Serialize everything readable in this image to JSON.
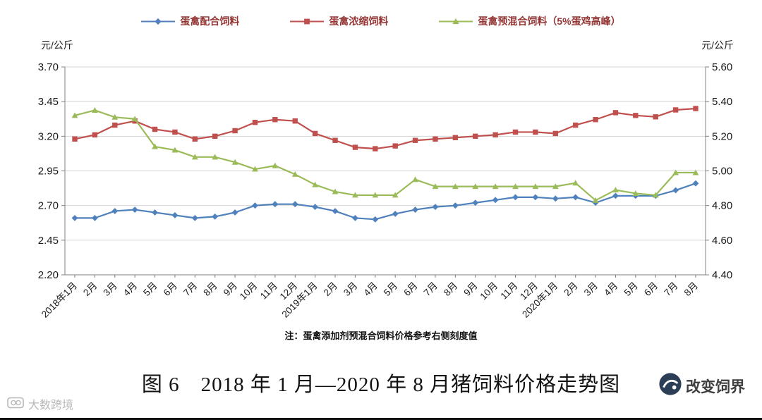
{
  "legend": [
    {
      "label": "蛋禽配合饲料",
      "color": "#4F81BD",
      "marker": "diamond"
    },
    {
      "label": "蛋禽浓缩饲料",
      "color": "#C0504D",
      "marker": "square"
    },
    {
      "label": "蛋禽预混合饲料（5%蛋鸡高峰）",
      "color": "#9BBB59",
      "marker": "triangle"
    }
  ],
  "note": "注：蛋禽添加剂预混合饲料价格参考右侧刻度值",
  "caption": "图 6　2018 年 1 月—2020 年 8 月猪饲料价格走势图",
  "watermarks": {
    "left": "大数跨境",
    "right": "改变饲界"
  },
  "colors": {
    "legend_text": "#943634",
    "axis": "#808080",
    "grid": "#d4d4d4",
    "text": "#1a1a1a",
    "blue": "#4F81BD",
    "red": "#C0504D",
    "green": "#9BBB59"
  },
  "chart_data": {
    "type": "line",
    "title": "2018年1月—2020年8月猪饲料价格走势图",
    "categories": [
      "2018年1月",
      "2月",
      "3月",
      "4月",
      "5月",
      "6月",
      "7月",
      "8月",
      "9月",
      "10月",
      "11月",
      "12月",
      "2019年1月",
      "2月",
      "3月",
      "4月",
      "5月",
      "6月",
      "7月",
      "8月",
      "9月",
      "10月",
      "11月",
      "12月",
      "2020年1月",
      "2月",
      "3月",
      "4月",
      "5月",
      "6月",
      "7月",
      "8月"
    ],
    "series": [
      {
        "name": "蛋禽配合饲料",
        "axis": "left",
        "marker": "diamond",
        "color": "#4F81BD",
        "values": [
          2.61,
          2.61,
          2.66,
          2.67,
          2.65,
          2.63,
          2.61,
          2.62,
          2.65,
          2.7,
          2.71,
          2.71,
          2.69,
          2.66,
          2.61,
          2.6,
          2.64,
          2.67,
          2.69,
          2.7,
          2.72,
          2.74,
          2.76,
          2.76,
          2.75,
          2.76,
          2.72,
          2.77,
          2.77,
          2.77,
          2.81,
          2.86
        ]
      },
      {
        "name": "蛋禽浓缩饲料",
        "axis": "left",
        "marker": "square",
        "color": "#C0504D",
        "values": [
          3.18,
          3.21,
          3.28,
          3.31,
          3.25,
          3.23,
          3.18,
          3.2,
          3.24,
          3.3,
          3.32,
          3.31,
          3.22,
          3.17,
          3.12,
          3.11,
          3.13,
          3.17,
          3.18,
          3.19,
          3.2,
          3.21,
          3.23,
          3.23,
          3.22,
          3.28,
          3.32,
          3.37,
          3.35,
          3.34,
          3.39,
          3.4
        ]
      },
      {
        "name": "蛋禽预混合饲料（5%蛋鸡高峰）",
        "axis": "right",
        "marker": "triangle",
        "color": "#9BBB59",
        "values": [
          5.32,
          5.35,
          5.31,
          5.3,
          5.14,
          5.12,
          5.08,
          5.08,
          5.05,
          5.01,
          5.03,
          4.98,
          4.92,
          4.88,
          4.86,
          4.86,
          4.86,
          4.95,
          4.91,
          4.91,
          4.91,
          4.91,
          4.91,
          4.91,
          4.91,
          4.93,
          4.83,
          4.89,
          4.87,
          4.86,
          4.99,
          4.99
        ]
      }
    ],
    "left_axis": {
      "label": "元/公斤",
      "min": 2.2,
      "max": 3.7,
      "ticks": [
        2.2,
        2.45,
        2.7,
        2.95,
        3.2,
        3.45,
        3.7
      ]
    },
    "right_axis": {
      "label": "元/公斤",
      "min": 4.4,
      "max": 5.6,
      "ticks": [
        4.4,
        4.6,
        4.8,
        5.0,
        5.2,
        5.4,
        5.6
      ]
    },
    "grid": true,
    "legend_position": "top",
    "x_label_rotation": -45
  }
}
